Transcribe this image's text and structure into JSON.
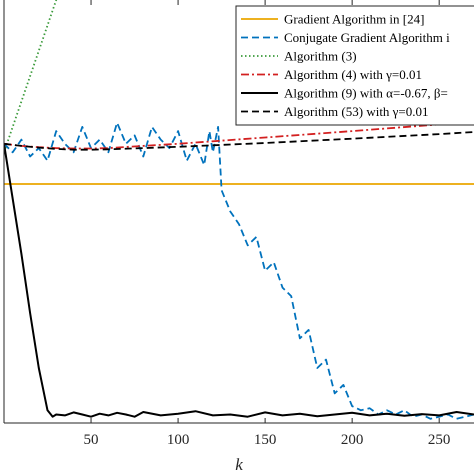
{
  "chart_data": {
    "type": "line",
    "xlabel": "k",
    "ylabel": "",
    "xlim": [
      0,
      270
    ],
    "ylim": [
      0,
      1
    ],
    "x_ticks": [
      50,
      100,
      150,
      200,
      250
    ],
    "x_tick_labels": [
      "50",
      "100",
      "150",
      "200",
      "250"
    ],
    "grid": false,
    "legend_position": "top-right",
    "series": [
      {
        "name": "Gradient Algorithm in [24]",
        "color": "#EDB120",
        "style": "solid",
        "x": [
          0,
          270
        ],
        "y": [
          0.565,
          0.565
        ]
      },
      {
        "name": "Conjugate Gradient Algorithm i",
        "color": "#0072BD",
        "style": "dashed",
        "x": [
          0,
          5,
          10,
          15,
          20,
          25,
          30,
          35,
          40,
          45,
          50,
          55,
          60,
          65,
          70,
          75,
          80,
          85,
          90,
          95,
          100,
          105,
          110,
          115,
          118,
          120,
          123,
          125,
          130,
          135,
          140,
          145,
          150,
          155,
          160,
          165,
          170,
          175,
          180,
          185,
          190,
          195,
          200,
          205,
          210,
          215,
          220,
          225,
          230,
          235,
          240,
          245,
          250,
          255,
          260,
          265,
          270
        ],
        "y": [
          0.66,
          0.64,
          0.67,
          0.63,
          0.65,
          0.62,
          0.69,
          0.66,
          0.64,
          0.7,
          0.65,
          0.67,
          0.64,
          0.71,
          0.66,
          0.68,
          0.63,
          0.7,
          0.67,
          0.65,
          0.69,
          0.62,
          0.66,
          0.61,
          0.69,
          0.64,
          0.7,
          0.55,
          0.5,
          0.47,
          0.42,
          0.44,
          0.36,
          0.38,
          0.32,
          0.3,
          0.2,
          0.22,
          0.13,
          0.15,
          0.07,
          0.09,
          0.04,
          0.03,
          0.035,
          0.02,
          0.03,
          0.02,
          0.03,
          0.015,
          0.02,
          0.01,
          0.015,
          0.02,
          0.01,
          0.015,
          0.02
        ]
      },
      {
        "name": "Algorithm (3)",
        "color": "#3A9A3A",
        "style": "dotted",
        "x": [
          0,
          10,
          20,
          30,
          35
        ],
        "y": [
          0.64,
          0.76,
          0.88,
          1.0,
          1.06
        ]
      },
      {
        "name": "Algorithm (4) with γ=0.01",
        "color": "#D32020",
        "style": "dashdot",
        "x": [
          0,
          10,
          20,
          30,
          40,
          50,
          60,
          80,
          100,
          150,
          200,
          250,
          270
        ],
        "y": [
          0.66,
          0.655,
          0.652,
          0.65,
          0.649,
          0.649,
          0.65,
          0.655,
          0.66,
          0.675,
          0.69,
          0.706,
          0.712
        ]
      },
      {
        "name": "Algorithm (9) with α=-0.67, β=",
        "color": "#000000",
        "style": "solid",
        "x": [
          0,
          5,
          10,
          15,
          20,
          25,
          28,
          30,
          35,
          40,
          45,
          50,
          55,
          60,
          65,
          70,
          75,
          80,
          90,
          100,
          110,
          120,
          130,
          140,
          150,
          160,
          170,
          180,
          190,
          200,
          210,
          220,
          230,
          240,
          250,
          260,
          270
        ],
        "y": [
          0.66,
          0.53,
          0.4,
          0.26,
          0.13,
          0.03,
          0.015,
          0.02,
          0.018,
          0.025,
          0.02,
          0.015,
          0.022,
          0.018,
          0.024,
          0.02,
          0.015,
          0.026,
          0.018,
          0.022,
          0.028,
          0.018,
          0.02,
          0.015,
          0.025,
          0.018,
          0.022,
          0.016,
          0.02,
          0.024,
          0.018,
          0.022,
          0.017,
          0.021,
          0.018,
          0.026,
          0.02
        ]
      },
      {
        "name": "Algorithm (53) with γ=0.01",
        "color": "#000000",
        "style": "dashed",
        "x": [
          0,
          10,
          20,
          30,
          40,
          50,
          60,
          80,
          100,
          150,
          200,
          250,
          270
        ],
        "y": [
          0.66,
          0.655,
          0.651,
          0.648,
          0.646,
          0.646,
          0.647,
          0.65,
          0.653,
          0.662,
          0.672,
          0.683,
          0.688
        ]
      }
    ]
  }
}
